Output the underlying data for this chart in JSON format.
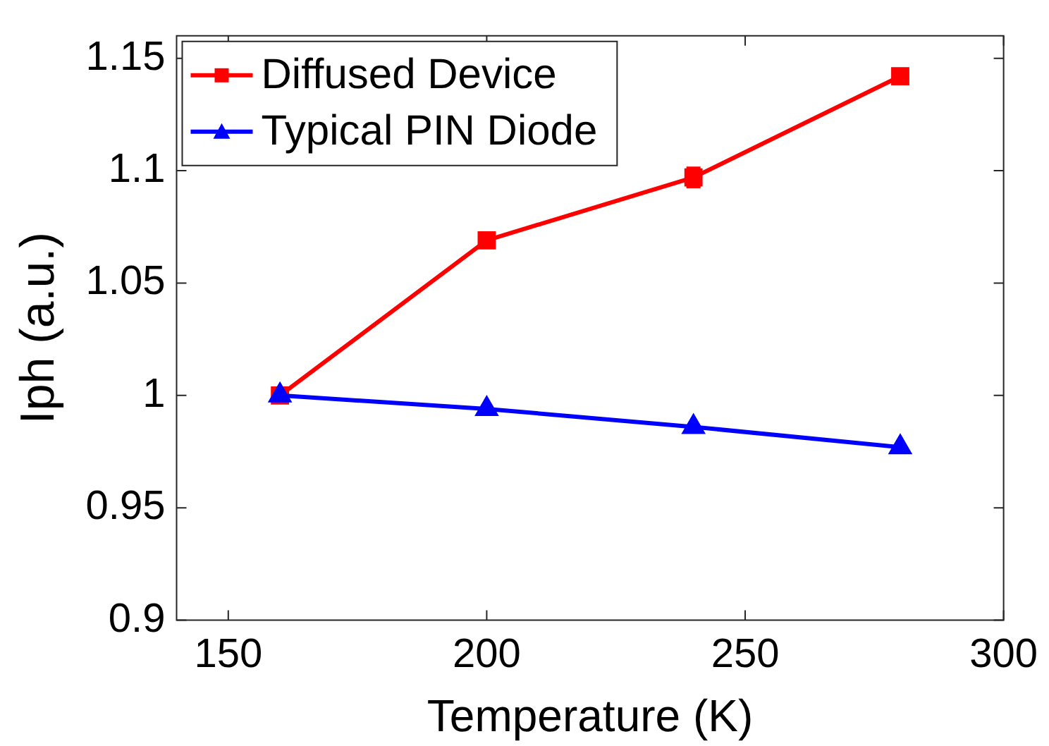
{
  "chart_data": {
    "type": "line",
    "xlabel": "Temperature (K)",
    "ylabel": "Iph (a.u.)",
    "x": [
      160,
      200,
      240,
      280
    ],
    "series": [
      {
        "name": "Diffused Device",
        "color": "#ff0000",
        "marker": "square",
        "values": [
          1.0,
          1.069,
          1.097,
          1.142
        ],
        "errors": [
          null,
          null,
          0.004,
          null
        ]
      },
      {
        "name": "Typical PIN Diode",
        "color": "#0000ff",
        "marker": "triangle",
        "values": [
          1.0,
          0.994,
          0.986,
          0.977
        ]
      }
    ],
    "xlim": [
      140,
      300
    ],
    "xticks": [
      150,
      200,
      250,
      300
    ],
    "ylim": [
      0.9,
      1.16
    ],
    "yticks": [
      0.9,
      0.95,
      1,
      1.05,
      1.1,
      1.15
    ],
    "grid": false,
    "legend": "top left",
    "line_style": "solid"
  }
}
